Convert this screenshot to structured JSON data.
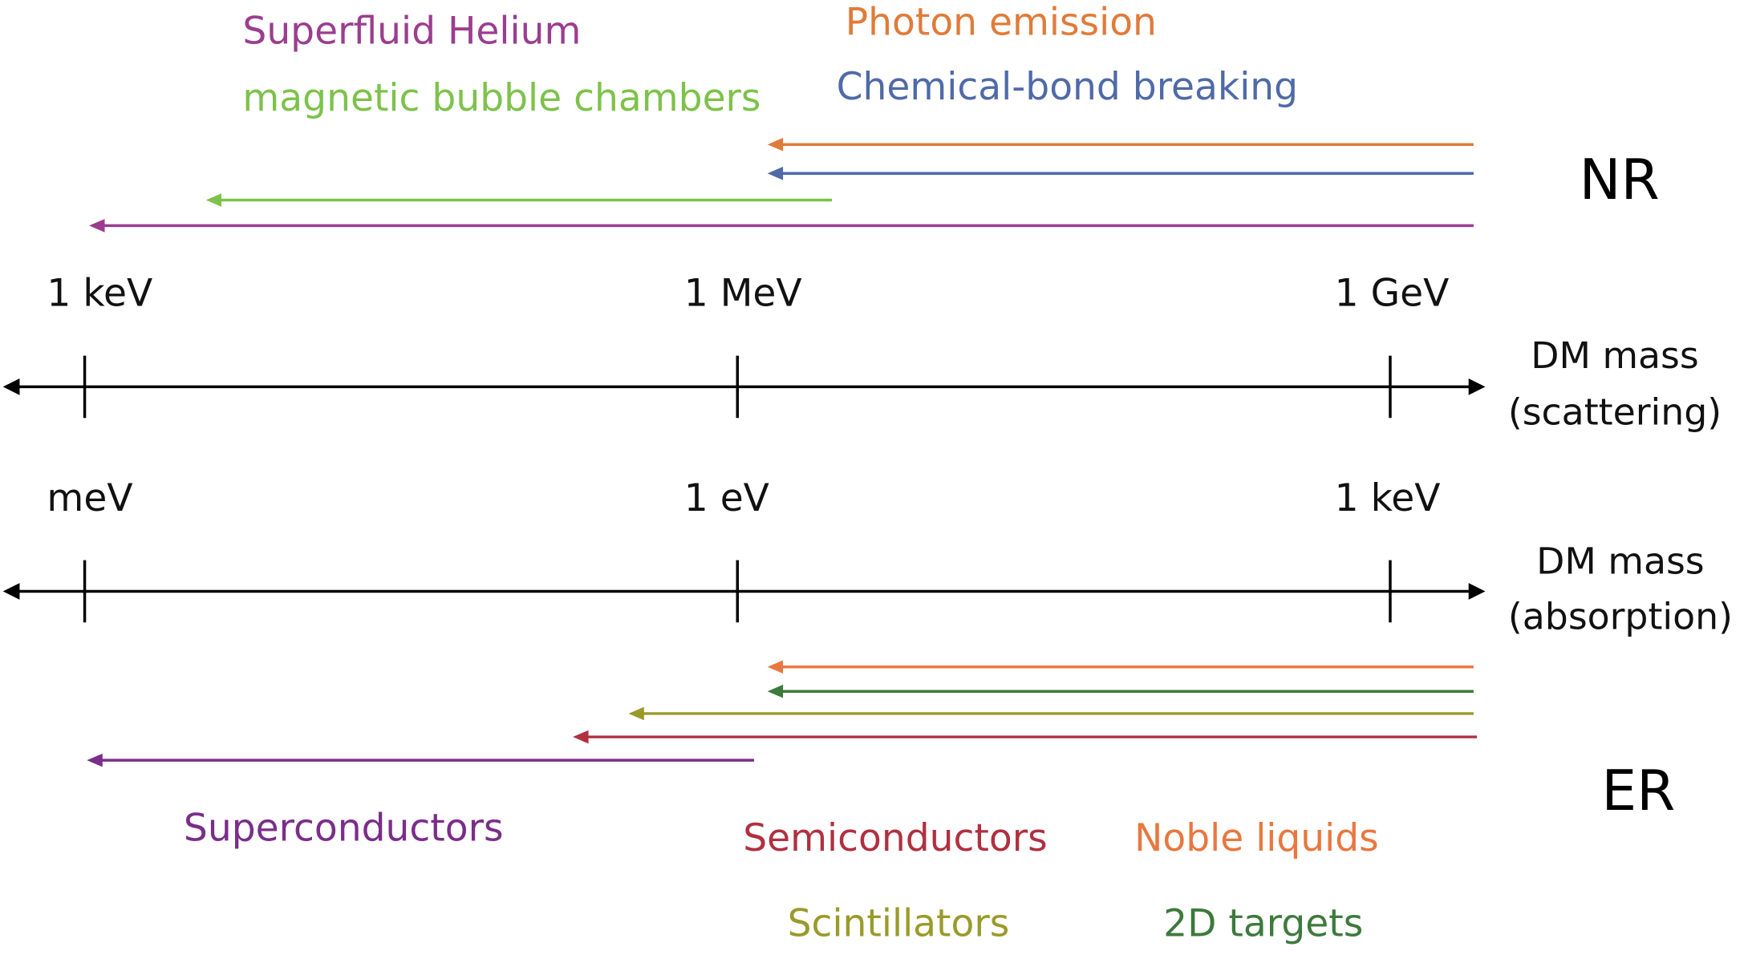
{
  "nr": {
    "label": "NR",
    "technologies": [
      {
        "name": "Superfluid Helium",
        "color": "#9b3d8f"
      },
      {
        "name": "magnetic bubble chambers",
        "color": "#7dc24a"
      },
      {
        "name": "Photon emission",
        "color": "#e07b39"
      },
      {
        "name": "Chemical-bond breaking",
        "color": "#4f6aa8"
      }
    ]
  },
  "scattering_axis": {
    "label": [
      "DM mass",
      "(scattering)"
    ],
    "ticks": [
      "1 keV",
      "1 MeV",
      "1 GeV"
    ]
  },
  "absorption_axis": {
    "label": [
      "DM mass",
      "(absorption)"
    ],
    "ticks": [
      "meV",
      "1 eV",
      "1 keV"
    ]
  },
  "er": {
    "label": "ER",
    "technologies": [
      {
        "name": "Superconductors",
        "color": "#7b2d8a"
      },
      {
        "name": "Semiconductors",
        "color": "#b03040"
      },
      {
        "name": "Noble liquids",
        "color": "#e8783f"
      },
      {
        "name": "Scintillators",
        "color": "#9a9a2a"
      },
      {
        "name": "2D targets",
        "color": "#3d7a3d"
      }
    ]
  }
}
